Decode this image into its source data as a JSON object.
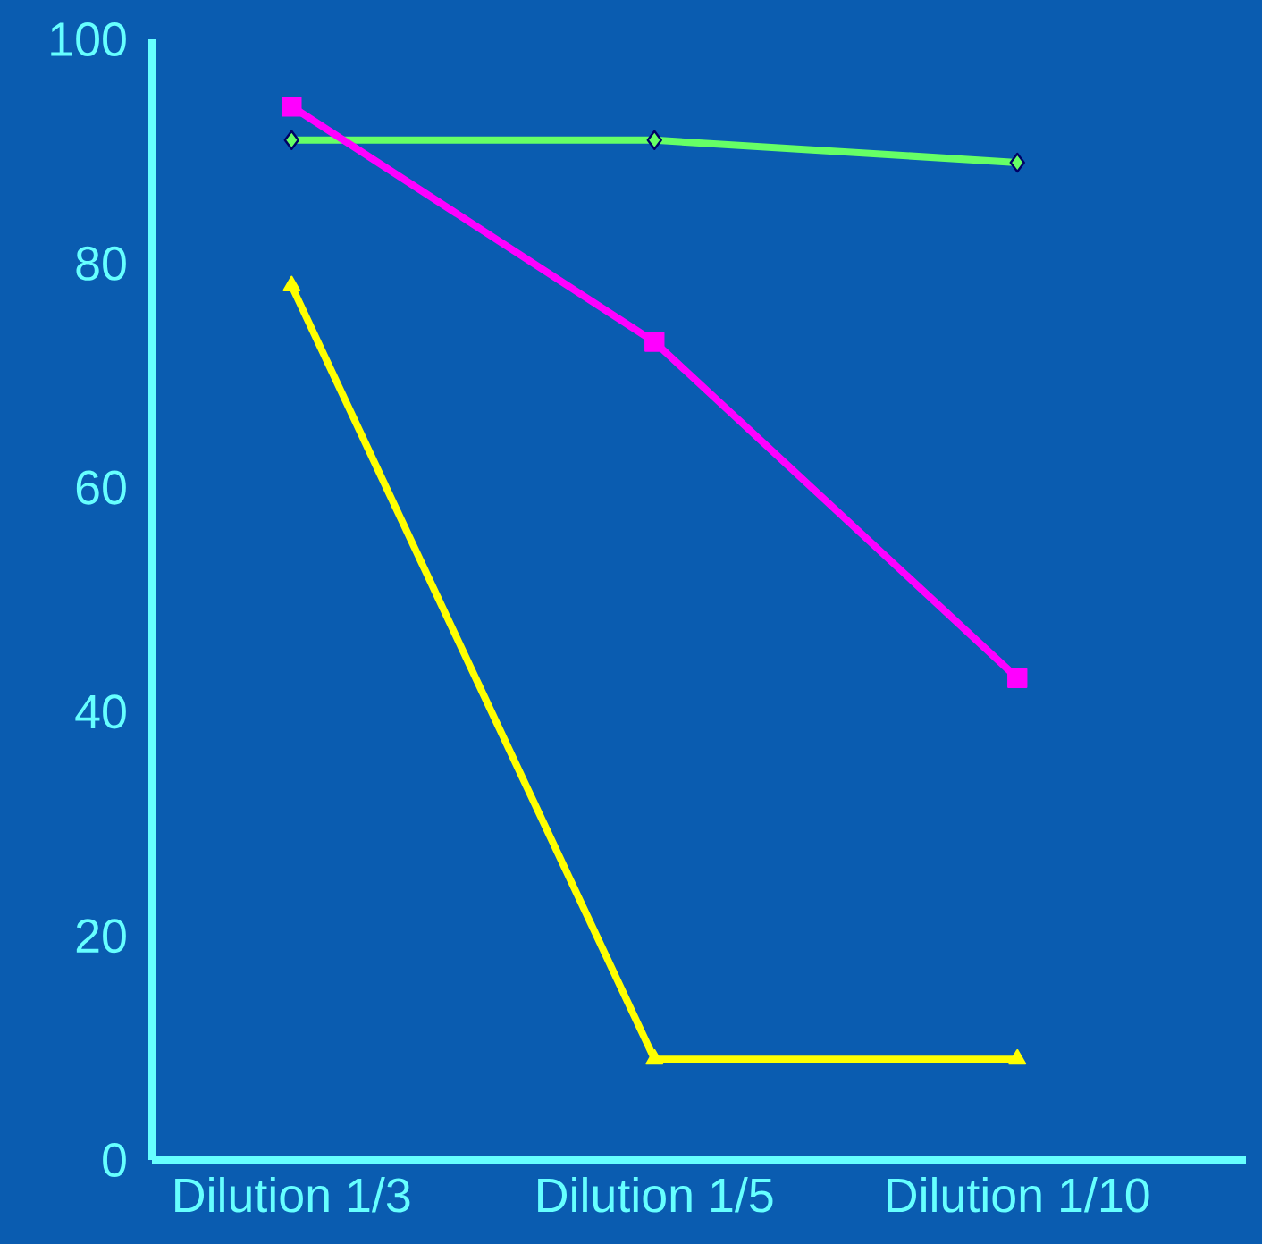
{
  "chart_data": {
    "type": "line",
    "categories": [
      "Dilution 1/3",
      "Dilution 1/5",
      "Dilution 1/10"
    ],
    "series": [
      {
        "color": "#66ff66",
        "values": [
          91,
          91,
          89
        ],
        "marker": "diamond"
      },
      {
        "color": "#ff00ff",
        "values": [
          94,
          73,
          43
        ],
        "marker": "square"
      },
      {
        "color": "#ffff00",
        "values": [
          78,
          9,
          9
        ],
        "marker": "triangle"
      }
    ],
    "ylim": [
      0,
      100
    ],
    "yticks": [
      0,
      20,
      40,
      60,
      80,
      100
    ],
    "line_style": "solid"
  }
}
